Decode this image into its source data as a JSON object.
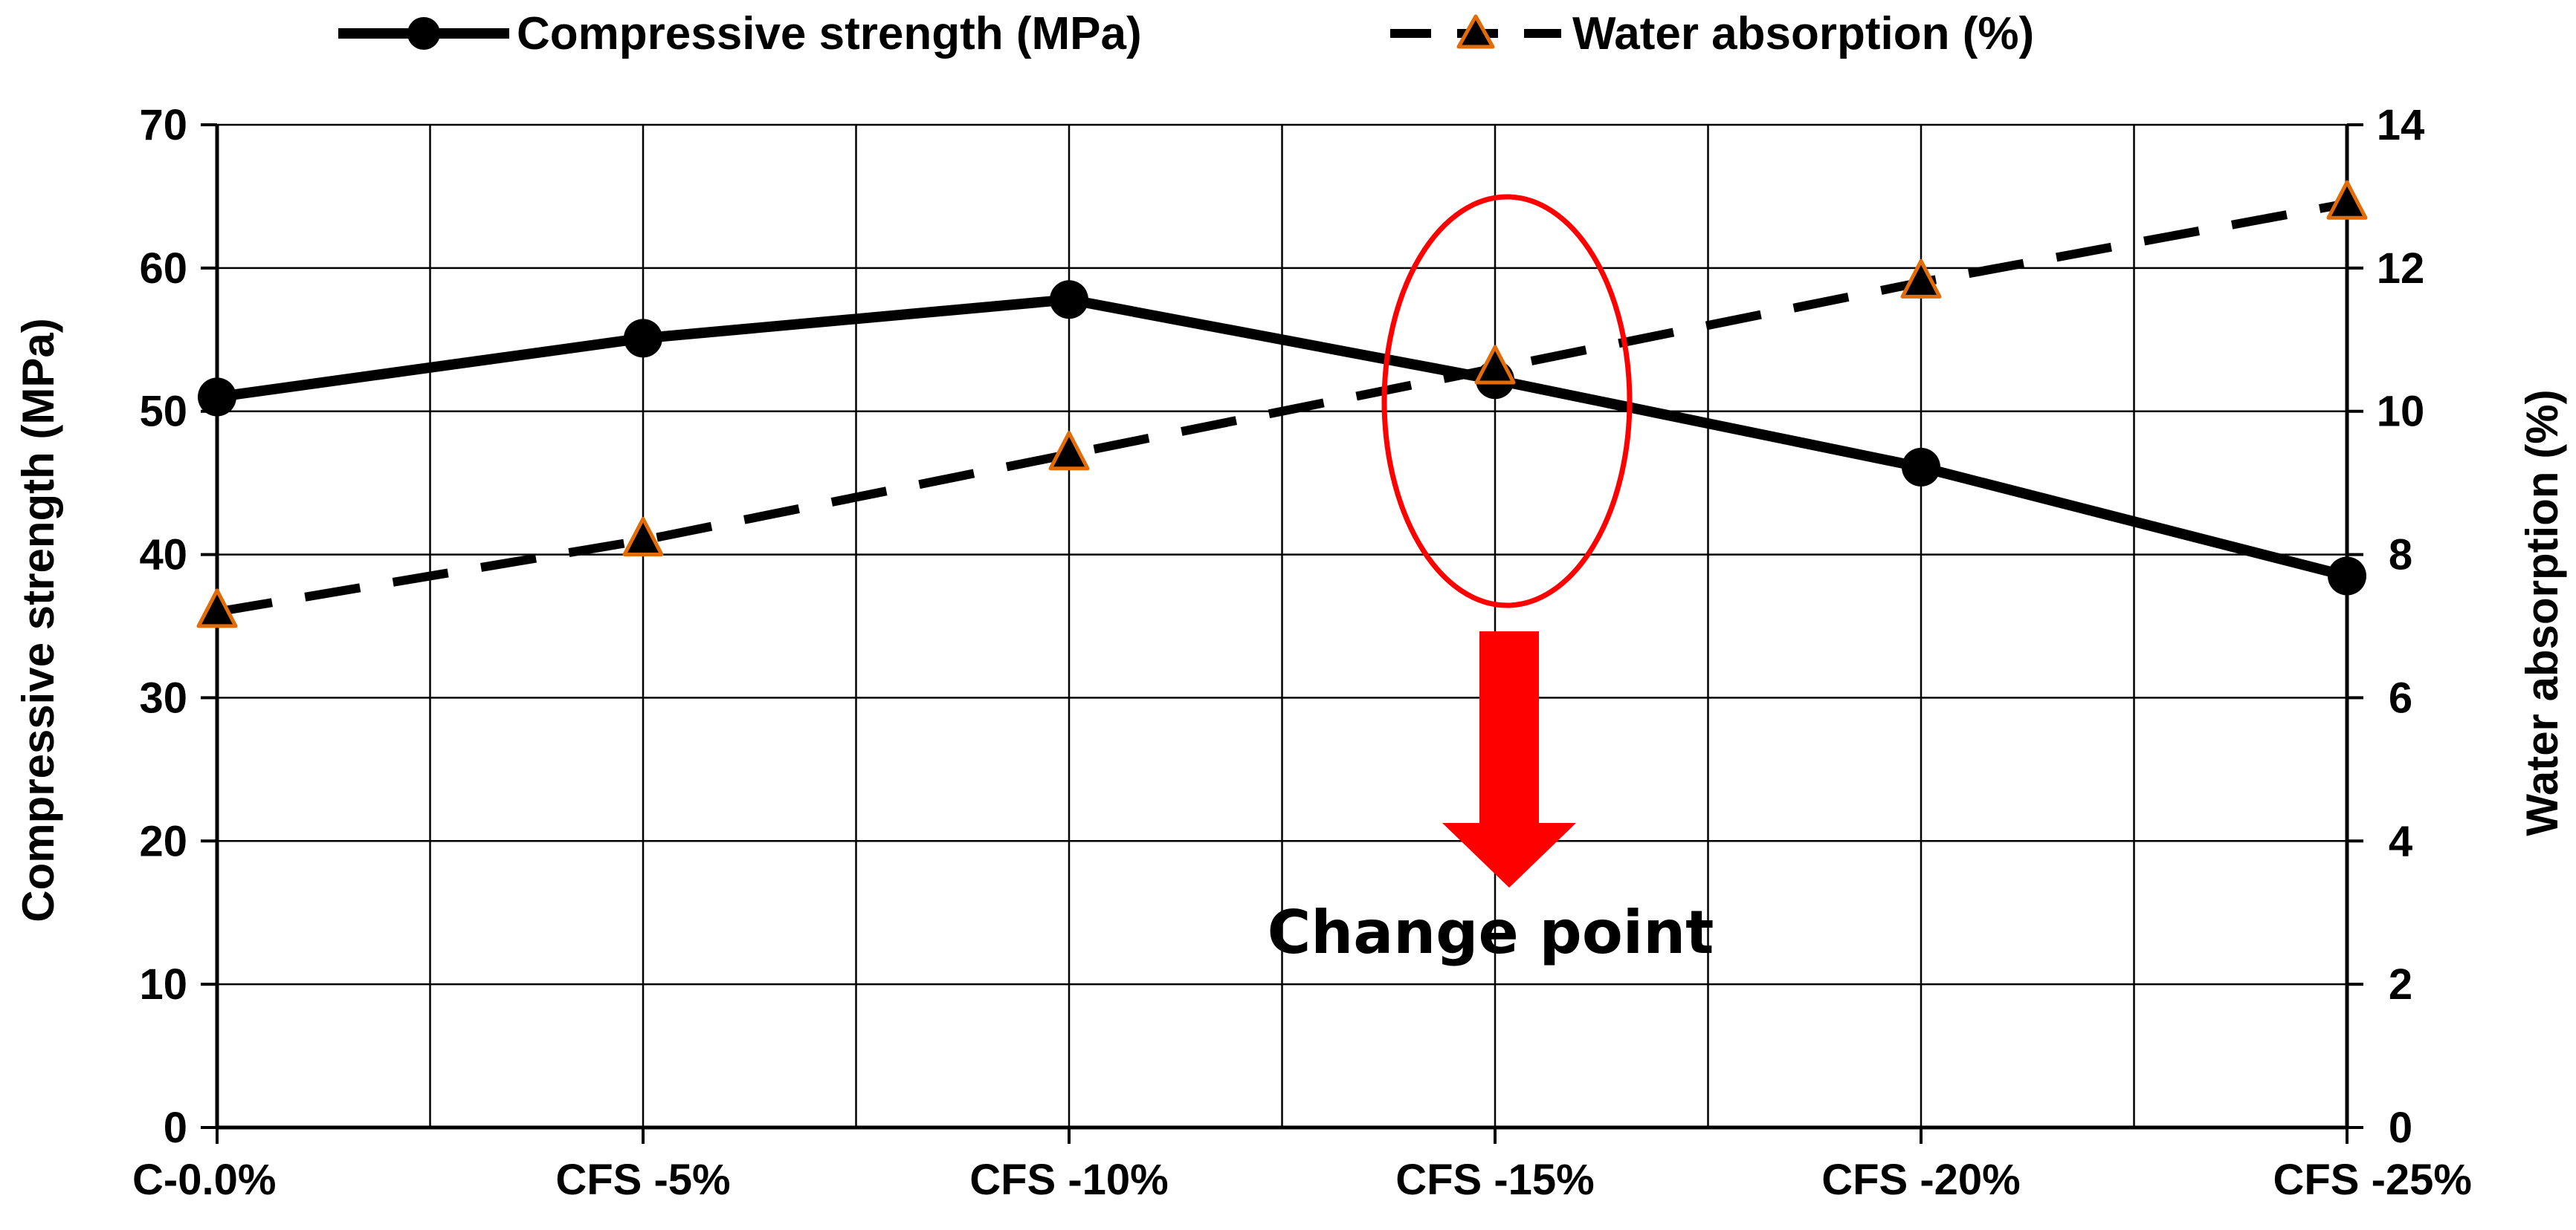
{
  "chart_data": {
    "type": "line",
    "title": "",
    "categories": [
      "C-0.0%",
      "CFS -5%",
      "CFS -10%",
      "CFS -15%",
      "CFS -20%",
      "CFS -25%"
    ],
    "series": [
      {
        "name": "Compressive strength (MPa)",
        "axis": "left",
        "values": [
          51.0,
          55.1,
          57.8,
          52.2,
          46.1,
          38.5
        ],
        "color": "#000000",
        "line_style": "solid",
        "marker": "circle"
      },
      {
        "name": "Water absorption (%)",
        "axis": "right",
        "values": [
          7.2,
          8.2,
          9.4,
          10.6,
          11.8,
          12.9
        ],
        "color": "#000000",
        "marker_edge_color": "#e36c09",
        "line_style": "dashed",
        "marker": "triangle"
      }
    ],
    "xlabel": "",
    "ylabel": "Compressive  strength (MPa)",
    "y2label": "Water absorption (%)",
    "ylim": [
      0,
      70
    ],
    "y2lim": [
      0,
      14
    ],
    "yticks": [
      "0",
      "10",
      "20",
      "30",
      "40",
      "50",
      "60",
      "70"
    ],
    "y2ticks": [
      "0",
      "2",
      "4",
      "6",
      "8",
      "10",
      "12",
      "14"
    ],
    "grid": true,
    "legend_position": "top",
    "annotation": {
      "text": "Change point",
      "category": "CFS -15%",
      "highlight_color": "#ff0000"
    }
  }
}
